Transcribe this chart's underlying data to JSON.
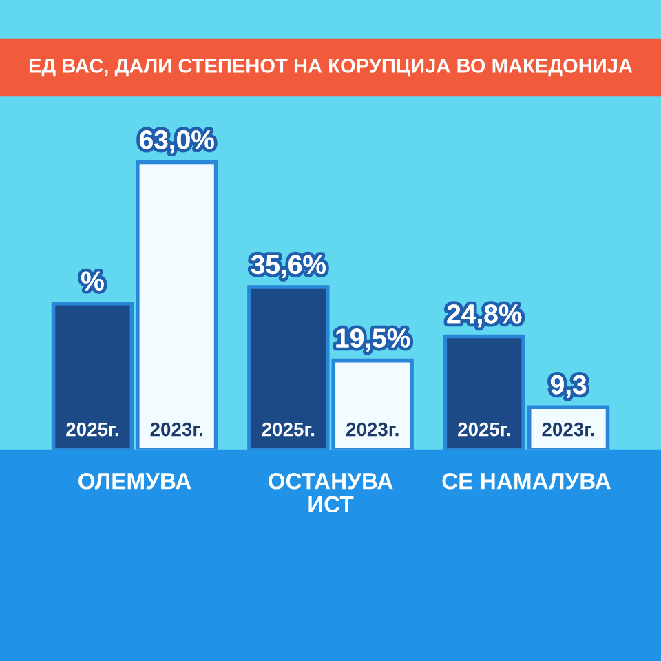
{
  "chart_data": {
    "type": "bar",
    "title": "ЕД ВАС, ДАЛИ СТЕПЕНОТ НА КОРУПЦИЈА ВО МАКЕДОНИЈА",
    "categories": [
      "ОЛЕМУВА",
      "ОСТАНУВА\nИСТ",
      "СЕ НАМАЛУВА"
    ],
    "series": [
      {
        "name": "2025г.",
        "color": "#1b4a86",
        "values": [
          32,
          35.6,
          24.8
        ],
        "value_labels": [
          "%",
          "35,6%",
          "24,8%"
        ]
      },
      {
        "name": "2023г.",
        "color": "#f2fbff",
        "values": [
          63.0,
          19.5,
          9.3
        ],
        "value_labels": [
          "63,0%",
          "19,5%",
          "9,3"
        ]
      }
    ],
    "tick_labels": "x"
  }
}
